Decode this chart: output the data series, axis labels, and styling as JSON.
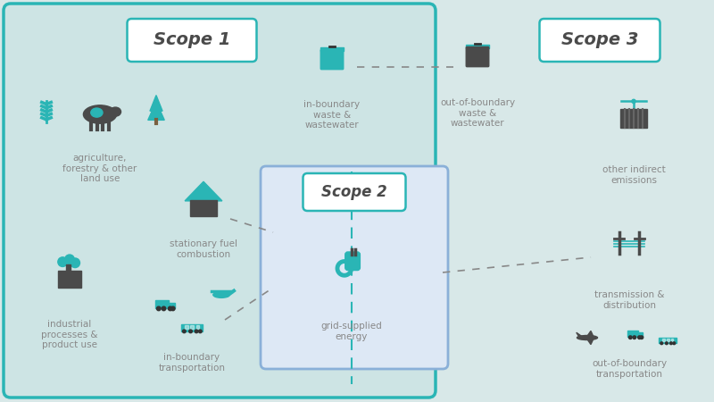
{
  "bg_color": "#d8e8e8",
  "scope1_bg": "#cde4e4",
  "scope1_border": "#2ab5b5",
  "scope2_bg": "#dde8f5",
  "scope2_border": "#8ab0d8",
  "dark_gray": "#4a4a4a",
  "teal": "#2ab5b5",
  "light_gray": "#888888",
  "scope1_label": "Scope 1",
  "scope2_label": "Scope 2",
  "scope3_label": "Scope 3",
  "items": {
    "agriculture": "agriculture,\nforestry & other\nland use",
    "industrial": "industrial\nprocesses &\nproduct use",
    "stationary": "stationary fuel\ncombustion",
    "inbound_transport": "in-boundary\ntransportation",
    "inbound_waste": "in-boundary\nwaste &\nwastewater",
    "grid_energy": "grid-supplied\nenergy",
    "outbound_waste": "out-of-boundary\nwaste &\nwastewater",
    "other_indirect": "other indirect\nemissions",
    "transmission": "transmission &\ndistribution",
    "outbound_transport": "out-of-boundary\ntransportation"
  }
}
